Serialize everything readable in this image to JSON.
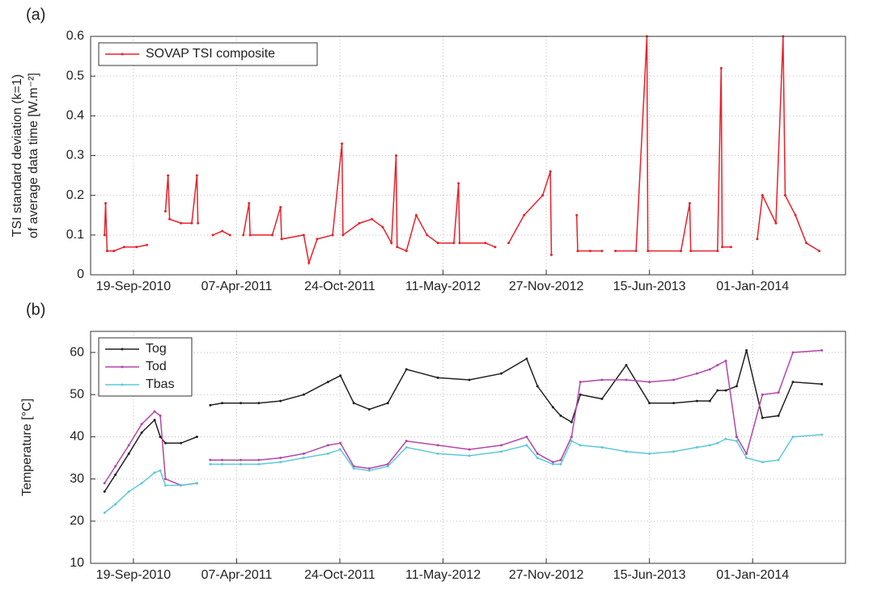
{
  "chart_data": [
    {
      "type": "line",
      "panel_label": "(a)",
      "ylabel": [
        "TSI standard deviation (k=1)",
        "of average data time [W.m⁻²]"
      ],
      "xlim": [
        "2010-06-28",
        "2014-06-30"
      ],
      "xticks": [
        {
          "value": "2010-09-19",
          "label": "19-Sep-2010"
        },
        {
          "value": "2011-04-07",
          "label": "07-Apr-2011"
        },
        {
          "value": "2011-10-24",
          "label": "24-Oct-2011"
        },
        {
          "value": "2012-05-11",
          "label": "11-May-2012"
        },
        {
          "value": "2012-11-27",
          "label": "27-Nov-2012"
        },
        {
          "value": "2013-06-15",
          "label": "15-Jun-2013"
        },
        {
          "value": "2014-01-01",
          "label": "01-Jan-2014"
        }
      ],
      "ylim": [
        0,
        0.6
      ],
      "yticks": [
        0,
        0.1,
        0.2,
        0.3,
        0.4,
        0.5,
        0.6
      ],
      "grid": true,
      "legend": "upper-left",
      "x": [
        "2010-07-25",
        "2010-07-27",
        "2010-07-30",
        "2010-08-12",
        "2010-09-01",
        "2010-09-25",
        "2010-10-15",
        "2010-11-05",
        "2010-11-20",
        "2010-11-25",
        "2010-11-28",
        "2010-12-20",
        "2011-01-10",
        "2011-01-20",
        "2011-01-22",
        "2011-02-05",
        "2011-02-20",
        "2011-03-10",
        "2011-03-25",
        "2011-04-10",
        "2011-04-20",
        "2011-05-01",
        "2011-05-03",
        "2011-06-15",
        "2011-07-01",
        "2011-07-03",
        "2011-08-15",
        "2011-08-25",
        "2011-09-10",
        "2011-10-10",
        "2011-10-28",
        "2011-10-30",
        "2011-12-01",
        "2011-12-25",
        "2012-01-15",
        "2012-02-01",
        "2012-02-10",
        "2012-02-12",
        "2012-03-01",
        "2012-03-20",
        "2012-04-10",
        "2012-05-01",
        "2012-06-01",
        "2012-06-10",
        "2012-06-12",
        "2012-08-01",
        "2012-08-20",
        "2012-09-10",
        "2012-09-15",
        "2012-10-15",
        "2012-11-20",
        "2012-12-05",
        "2012-12-07",
        "2012-12-20",
        "2013-01-25",
        "2013-01-27",
        "2013-02-20",
        "2013-03-15",
        "2013-03-25",
        "2013-04-10",
        "2013-05-20",
        "2013-06-10",
        "2013-06-12",
        "2013-08-15",
        "2013-09-01",
        "2013-09-03",
        "2013-10-25",
        "2013-11-01",
        "2013-11-03",
        "2013-11-20",
        "2013-12-10",
        "2014-01-10",
        "2014-01-20",
        "2014-02-15",
        "2014-03-01",
        "2014-03-05",
        "2014-03-25",
        "2014-04-15",
        "2014-05-10"
      ],
      "series": [
        {
          "name": "SOVAP TSI composite",
          "color": "#e8212a",
          "values": [
            0.1,
            0.18,
            0.06,
            0.06,
            0.07,
            0.07,
            0.075,
            null,
            0.16,
            0.25,
            0.14,
            0.13,
            0.13,
            0.25,
            0.13,
            null,
            0.1,
            0.11,
            0.1,
            null,
            0.1,
            0.18,
            0.1,
            0.1,
            0.17,
            0.09,
            0.1,
            0.03,
            0.09,
            0.1,
            0.33,
            0.1,
            0.13,
            0.14,
            0.12,
            0.08,
            0.3,
            0.07,
            0.06,
            0.15,
            0.1,
            0.08,
            0.08,
            0.23,
            0.08,
            0.08,
            0.07,
            null,
            0.08,
            0.15,
            0.2,
            0.26,
            0.05,
            null,
            0.15,
            0.06,
            0.06,
            0.06,
            null,
            0.06,
            0.06,
            0.6,
            0.06,
            0.06,
            0.18,
            0.06,
            0.06,
            0.52,
            0.07,
            0.07,
            null,
            0.09,
            0.2,
            0.13,
            0.6,
            0.2,
            0.15,
            0.08,
            0.06
          ]
        }
      ]
    },
    {
      "type": "line",
      "panel_label": "(b)",
      "ylabel": [
        "Temperature [°C]"
      ],
      "xlim": [
        "2010-06-28",
        "2014-06-30"
      ],
      "xticks": [
        {
          "value": "2010-09-19",
          "label": "19-Sep-2010"
        },
        {
          "value": "2011-04-07",
          "label": "07-Apr-2011"
        },
        {
          "value": "2011-10-24",
          "label": "24-Oct-2011"
        },
        {
          "value": "2012-05-11",
          "label": "11-May-2012"
        },
        {
          "value": "2012-11-27",
          "label": "27-Nov-2012"
        },
        {
          "value": "2013-06-15",
          "label": "15-Jun-2013"
        },
        {
          "value": "2014-01-01",
          "label": "01-Jan-2014"
        }
      ],
      "ylim": [
        10,
        65
      ],
      "yticks": [
        10,
        20,
        30,
        40,
        50,
        60
      ],
      "grid": true,
      "legend": "upper-left",
      "x": [
        "2010-07-25",
        "2010-08-15",
        "2010-09-10",
        "2010-10-05",
        "2010-10-30",
        "2010-11-10",
        "2010-11-20",
        "2010-12-20",
        "2011-01-20",
        "2011-02-05",
        "2011-02-15",
        "2011-03-10",
        "2011-04-15",
        "2011-05-20",
        "2011-07-01",
        "2011-08-15",
        "2011-10-01",
        "2011-10-25",
        "2011-11-20",
        "2011-12-20",
        "2012-01-25",
        "2012-03-01",
        "2012-05-01",
        "2012-07-01",
        "2012-09-01",
        "2012-10-20",
        "2012-11-10",
        "2012-12-10",
        "2012-12-25",
        "2013-01-15",
        "2013-02-01",
        "2013-03-15",
        "2013-05-01",
        "2013-06-15",
        "2013-08-01",
        "2013-09-15",
        "2013-10-10",
        "2013-10-25",
        "2013-11-10",
        "2013-12-01",
        "2013-12-20",
        "2014-01-20",
        "2014-02-20",
        "2014-03-20",
        "2014-05-15"
      ],
      "series": [
        {
          "name": "Tog",
          "color": "#222222",
          "values": [
            27,
            31,
            36,
            41,
            44,
            40,
            38.5,
            38.5,
            40,
            null,
            47.5,
            48,
            48,
            48,
            48.5,
            50,
            53,
            54.5,
            48,
            46.5,
            48,
            56,
            54,
            53.5,
            55,
            58.5,
            52,
            47,
            45,
            43.5,
            50,
            49,
            57,
            48,
            48,
            48.5,
            48.5,
            51,
            51,
            52,
            60.5,
            44.5,
            45,
            53,
            52.5
          ]
        },
        {
          "name": "Tod",
          "color": "#b446a8",
          "values": [
            29,
            33,
            38,
            43,
            46,
            45,
            30,
            28.5,
            29,
            null,
            34.5,
            34.5,
            34.5,
            34.5,
            35,
            36,
            38,
            38.5,
            33,
            32.5,
            33.5,
            39,
            38,
            37,
            38,
            40,
            36,
            34,
            34.5,
            40,
            53,
            53.5,
            53.5,
            53,
            53.5,
            55,
            56,
            57,
            58,
            40,
            36,
            50,
            50.5,
            60,
            60.5
          ]
        },
        {
          "name": "Tbas",
          "color": "#5ec8d8",
          "values": [
            22,
            24,
            27,
            29,
            31.5,
            32,
            28.5,
            28.5,
            29,
            null,
            33.5,
            33.5,
            33.5,
            33.5,
            34,
            35,
            36,
            37,
            32.5,
            32,
            33,
            37.5,
            36,
            35.5,
            36.5,
            38,
            35,
            33.5,
            33.5,
            39,
            38,
            37.5,
            36.5,
            36,
            36.5,
            37.5,
            38,
            38.5,
            39.5,
            39,
            35,
            34,
            34.5,
            40,
            40.5
          ]
        }
      ]
    }
  ]
}
